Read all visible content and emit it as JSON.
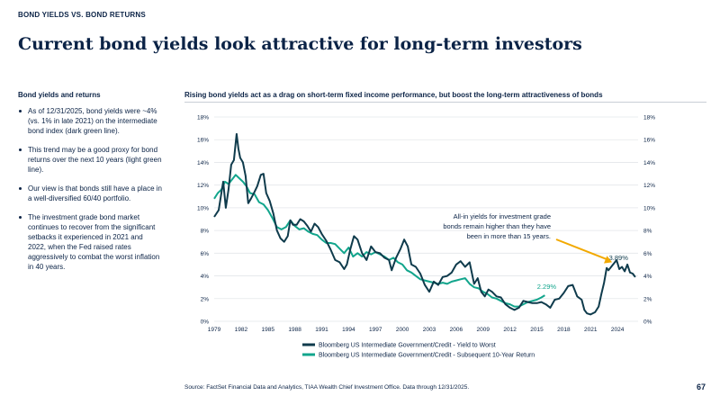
{
  "header": {
    "eyebrow": "BOND YIELDS VS. BOND RETURNS",
    "title": "Current bond yields look attractive for long-term investors"
  },
  "sidebar": {
    "heading": "Bond yields and returns",
    "bullets": [
      "As of 12/31/2025, bond yields were ~4% (vs. 1% in late 2021) on the intermediate bond index (dark green line).",
      "This trend may be a good proxy for bond returns over the next 10 years (light green line).",
      "Our view is that bonds still have a place in a well-diversified 60/40 portfolio.",
      "The investment grade bond market continues to recover from the significant setbacks it experienced in 2021 and 2022, when the Fed raised rates aggressively to combat the worst inflation in 40 years."
    ]
  },
  "chart_heading": "Rising bond yields act as a drag on short-term fixed income performance, but boost the long-term attractiveness of bonds",
  "source": "Source: FactSet Financial Data and Analytics, TIAA Wealth Chief Investment Office. Data through 12/31/2025.",
  "page_number": "67",
  "chart_data": {
    "type": "line",
    "xlim": [
      1979,
      2026.3
    ],
    "ylim": [
      0,
      18
    ],
    "x_ticks": [
      "1979",
      "1982",
      "1985",
      "1988",
      "1991",
      "1994",
      "1997",
      "2000",
      "2003",
      "2006",
      "2009",
      "2012",
      "2015",
      "2018",
      "2021",
      "2024"
    ],
    "y_ticks": [
      "0%",
      "2%",
      "4%",
      "6%",
      "8%",
      "10%",
      "12%",
      "14%",
      "16%",
      "18%"
    ],
    "grid": true,
    "dual_y_axis": true,
    "legend_position": "bottom",
    "annotation": "All-in yields for investment grade bonds remain higher than they have been in more than 15 years.",
    "label_end_yield": "3.89%",
    "label_end_return": "2.29%",
    "colors": {
      "yield": "#0f3b4c",
      "return": "#12a58c",
      "arrow": "#f2a900",
      "grid": "#e3e6ea",
      "text": "#0b2346"
    },
    "series": [
      {
        "name": "Bloomberg US Intermediate Government/Credit - Yield to Worst",
        "x": [
          1979.0,
          1979.5,
          1980.0,
          1980.3,
          1980.6,
          1980.9,
          1981.2,
          1981.5,
          1981.7,
          1981.9,
          1982.2,
          1982.5,
          1982.8,
          1983.1,
          1983.5,
          1983.8,
          1984.2,
          1984.5,
          1984.8,
          1985.2,
          1985.6,
          1986.0,
          1986.4,
          1986.8,
          1987.2,
          1987.5,
          1987.8,
          1988.2,
          1988.6,
          1989.0,
          1989.4,
          1989.8,
          1990.2,
          1990.6,
          1991.0,
          1991.5,
          1992.0,
          1992.5,
          1993.0,
          1993.5,
          1993.8,
          1994.2,
          1994.6,
          1995.0,
          1995.5,
          1996.0,
          1996.5,
          1997.0,
          1997.5,
          1998.0,
          1998.5,
          1998.8,
          1999.3,
          1999.8,
          2000.2,
          2000.6,
          2001.0,
          2001.5,
          2002.0,
          2002.5,
          2003.0,
          2003.5,
          2004.0,
          2004.5,
          2005.0,
          2005.5,
          2006.0,
          2006.5,
          2007.0,
          2007.5,
          2008.0,
          2008.4,
          2008.8,
          2009.2,
          2009.6,
          2010.0,
          2010.5,
          2011.0,
          2011.5,
          2012.0,
          2012.5,
          2013.0,
          2013.5,
          2014.0,
          2014.5,
          2015.0,
          2015.5,
          2016.0,
          2016.5,
          2017.0,
          2017.5,
          2018.0,
          2018.5,
          2019.0,
          2019.5,
          2020.0,
          2020.3,
          2020.6,
          2021.0,
          2021.5,
          2021.9,
          2022.2,
          2022.5,
          2022.8,
          2023.0,
          2023.3,
          2023.6,
          2023.9,
          2024.2,
          2024.5,
          2024.8,
          2025.1,
          2025.4,
          2025.7,
          2025.99
        ],
        "y": [
          9.2,
          9.8,
          12.3,
          10.0,
          11.6,
          13.8,
          14.2,
          16.5,
          15.2,
          14.4,
          14.0,
          12.8,
          10.4,
          10.8,
          11.4,
          11.9,
          12.9,
          13.0,
          11.3,
          10.6,
          9.5,
          8.0,
          7.3,
          7.0,
          7.5,
          8.9,
          8.5,
          8.5,
          9.0,
          8.8,
          8.4,
          7.9,
          8.6,
          8.3,
          7.7,
          7.1,
          6.3,
          5.4,
          5.2,
          4.6,
          5.0,
          6.4,
          7.5,
          7.2,
          6.0,
          5.4,
          6.6,
          6.1,
          6.0,
          5.6,
          5.4,
          4.5,
          5.6,
          6.4,
          7.2,
          6.6,
          5.0,
          4.8,
          4.2,
          3.2,
          2.6,
          3.5,
          3.2,
          3.9,
          4.0,
          4.3,
          5.0,
          5.3,
          4.8,
          5.2,
          3.3,
          3.8,
          2.6,
          2.2,
          2.8,
          2.6,
          2.2,
          2.1,
          1.5,
          1.2,
          1.0,
          1.2,
          1.8,
          1.7,
          1.6,
          1.6,
          1.7,
          1.5,
          1.2,
          1.9,
          2.0,
          2.5,
          3.1,
          3.2,
          2.2,
          1.9,
          1.0,
          0.7,
          0.6,
          0.8,
          1.3,
          2.4,
          3.4,
          4.7,
          4.5,
          4.8,
          5.1,
          5.4,
          4.6,
          4.8,
          4.4,
          5.0,
          4.3,
          4.2,
          3.89
        ]
      },
      {
        "name": "Bloomberg US Intermediate Government/Credit - Subsequent 10-Year Return",
        "x": [
          1979.0,
          1979.4,
          1979.8,
          1980.2,
          1980.6,
          1981.0,
          1981.4,
          1981.8,
          1982.2,
          1982.6,
          1983.0,
          1983.5,
          1984.0,
          1984.5,
          1985.0,
          1985.5,
          1986.0,
          1986.5,
          1987.0,
          1987.5,
          1988.0,
          1988.5,
          1989.0,
          1989.5,
          1990.0,
          1990.5,
          1991.0,
          1991.5,
          1992.0,
          1992.5,
          1993.0,
          1993.5,
          1994.0,
          1994.5,
          1995.0,
          1995.5,
          1996.0,
          1996.5,
          1997.0,
          1997.5,
          1998.0,
          1998.5,
          1999.0,
          1999.5,
          2000.0,
          2000.5,
          2001.0,
          2001.5,
          2002.0,
          2002.5,
          2003.0,
          2003.5,
          2004.0,
          2004.5,
          2005.0,
          2005.5,
          2006.0,
          2006.5,
          2007.0,
          2007.5,
          2008.0,
          2008.5,
          2009.0,
          2009.5,
          2010.0,
          2010.5,
          2011.0,
          2011.5,
          2012.0,
          2012.5,
          2013.0,
          2013.5,
          2014.0,
          2014.5,
          2015.0,
          2015.5,
          2015.9
        ],
        "y": [
          10.8,
          11.3,
          11.6,
          12.3,
          12.1,
          12.5,
          12.9,
          12.6,
          12.3,
          11.9,
          11.3,
          11.2,
          10.5,
          10.3,
          9.8,
          9.1,
          8.3,
          8.1,
          8.3,
          8.9,
          8.4,
          8.1,
          8.2,
          7.9,
          7.7,
          7.6,
          7.2,
          6.9,
          6.9,
          6.8,
          6.4,
          6.0,
          6.5,
          5.7,
          6.0,
          5.7,
          6.1,
          5.9,
          6.1,
          5.9,
          5.7,
          5.4,
          5.6,
          5.2,
          5.0,
          4.5,
          4.3,
          4.0,
          3.7,
          3.6,
          3.5,
          3.4,
          3.3,
          3.4,
          3.3,
          3.5,
          3.6,
          3.7,
          3.8,
          3.3,
          3.0,
          2.9,
          2.6,
          2.4,
          2.1,
          2.0,
          1.8,
          1.6,
          1.5,
          1.3,
          1.3,
          1.5,
          1.7,
          1.8,
          1.9,
          2.1,
          2.29
        ]
      }
    ]
  }
}
